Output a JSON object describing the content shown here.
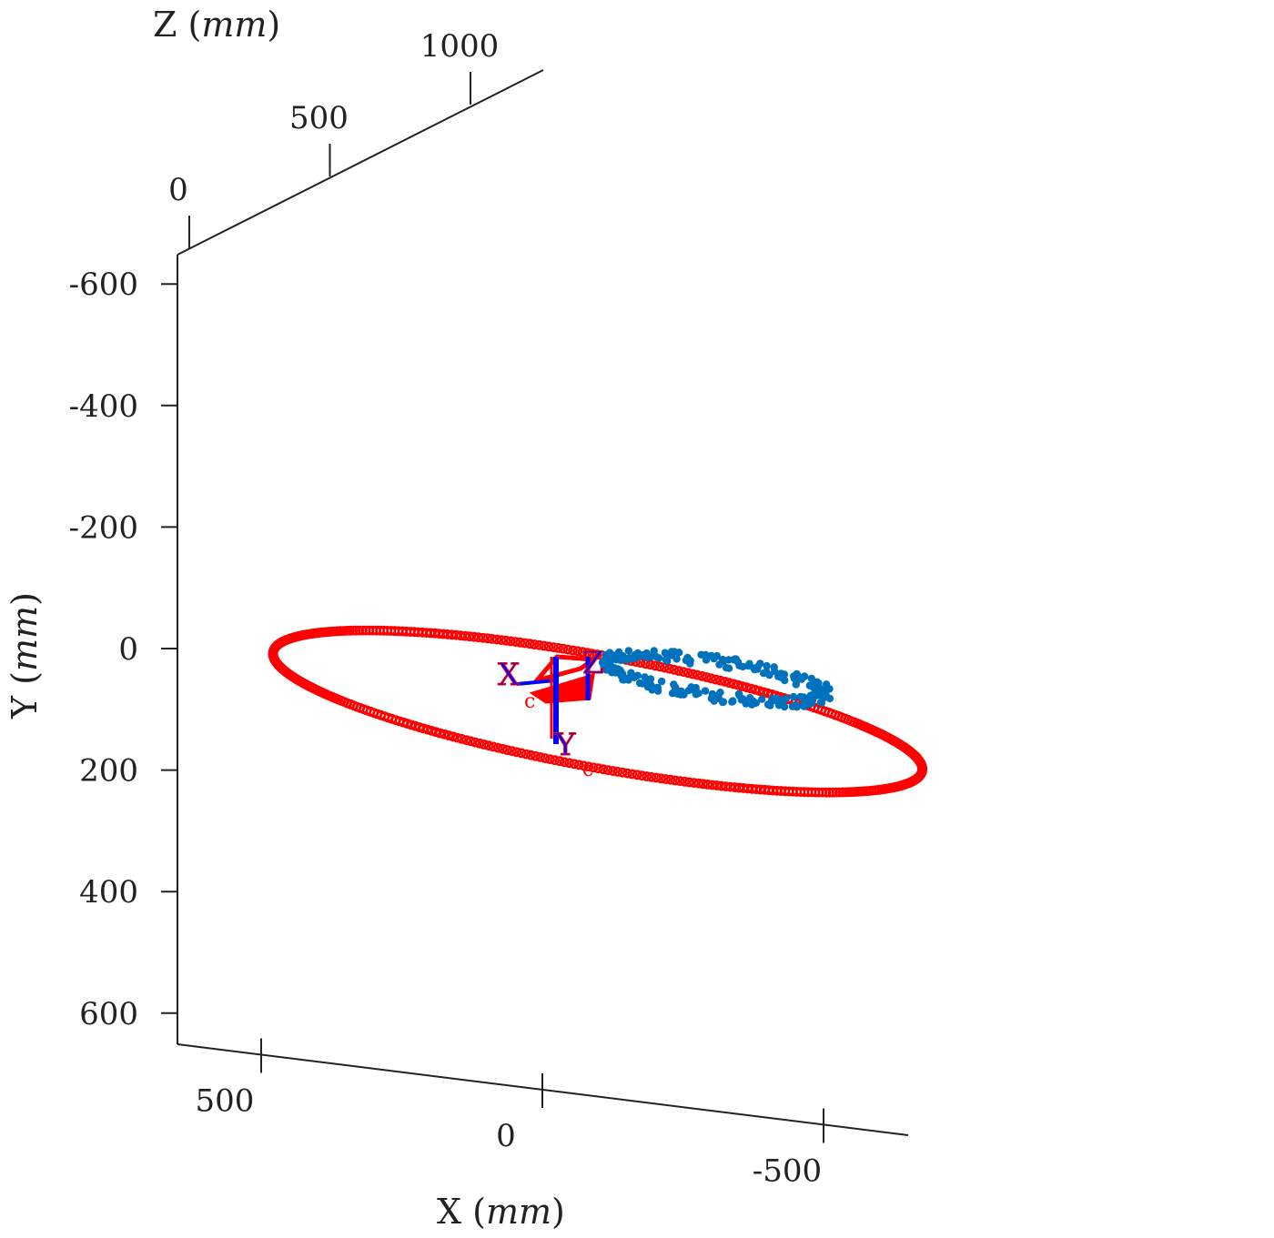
{
  "chart_data": {
    "type": "scatter3d",
    "axes": {
      "x": {
        "label": "X",
        "unit": "mm",
        "ticks": [
          500,
          0,
          -500
        ],
        "tick_labels": [
          "500",
          "0",
          "-500"
        ]
      },
      "y": {
        "label": "Y",
        "unit": "mm",
        "ticks": [
          -600,
          -400,
          -200,
          0,
          200,
          400,
          600
        ],
        "tick_labels": [
          "-600",
          "-400",
          "-200",
          "0",
          "200",
          "400",
          "600"
        ]
      },
      "z": {
        "label": "Z",
        "unit": "mm",
        "ticks": [
          0,
          500,
          1000
        ],
        "tick_labels": [
          "0",
          "500",
          "1000"
        ]
      }
    },
    "grid": false,
    "series": [
      {
        "color": "#ff0000",
        "marker": "circle",
        "shape": "ellipse",
        "center_xy": [
          -100,
          115
        ],
        "semi_axes_mm": [
          600,
          90
        ],
        "tilt_deg": 16,
        "points": 420
      },
      {
        "color": "#0072bd",
        "marker": "filled-dot",
        "shape": "noisy-ellipse",
        "center_xy": [
          -310,
          85
        ],
        "semi_axes_mm": [
          200,
          28
        ],
        "tilt_deg": 14,
        "points": 260
      }
    ],
    "camera_frames": [
      {
        "x_label": "X",
        "y_label": "Y",
        "z_label": "Z",
        "subscript": "c",
        "colors": [
          "#ff0000",
          "#0000ff"
        ]
      }
    ]
  }
}
